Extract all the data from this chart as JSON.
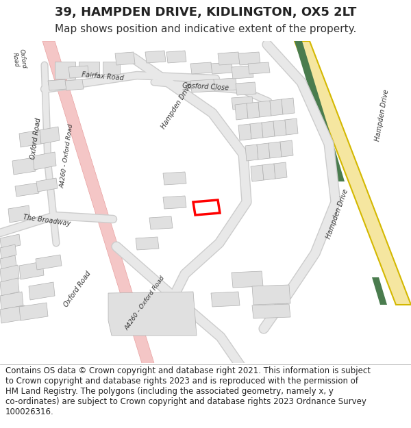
{
  "title": "39, HAMPDEN DRIVE, KIDLINGTON, OX5 2LT",
  "subtitle": "Map shows position and indicative extent of the property.",
  "footer_text": "Contains OS data © Crown copyright and database right 2021. This information is subject\nto Crown copyright and database rights 2023 and is reproduced with the permission of\nHM Land Registry. The polygons (including the associated geometry, namely x, y\nco-ordinates) are subject to Crown copyright and database rights 2023 Ordnance Survey\n100026316.",
  "bg_color": "#ffffff",
  "map_bg": "#f5f5f5",
  "road_color": "#e8e8e8",
  "road_outline": "#cccccc",
  "pink_road_color": "#f4c6c6",
  "pink_road_outline": "#e8a0a0",
  "yellow_road_color": "#f5e6a0",
  "yellow_road_outline": "#d4b800",
  "green_stripe_color": "#4a7c4e",
  "building_fill": "#e0e0e0",
  "building_outline": "#b0b0b0",
  "highlight_color": "#ff0000",
  "text_color": "#333333",
  "title_fontsize": 13,
  "subtitle_fontsize": 11,
  "footer_fontsize": 8.5
}
